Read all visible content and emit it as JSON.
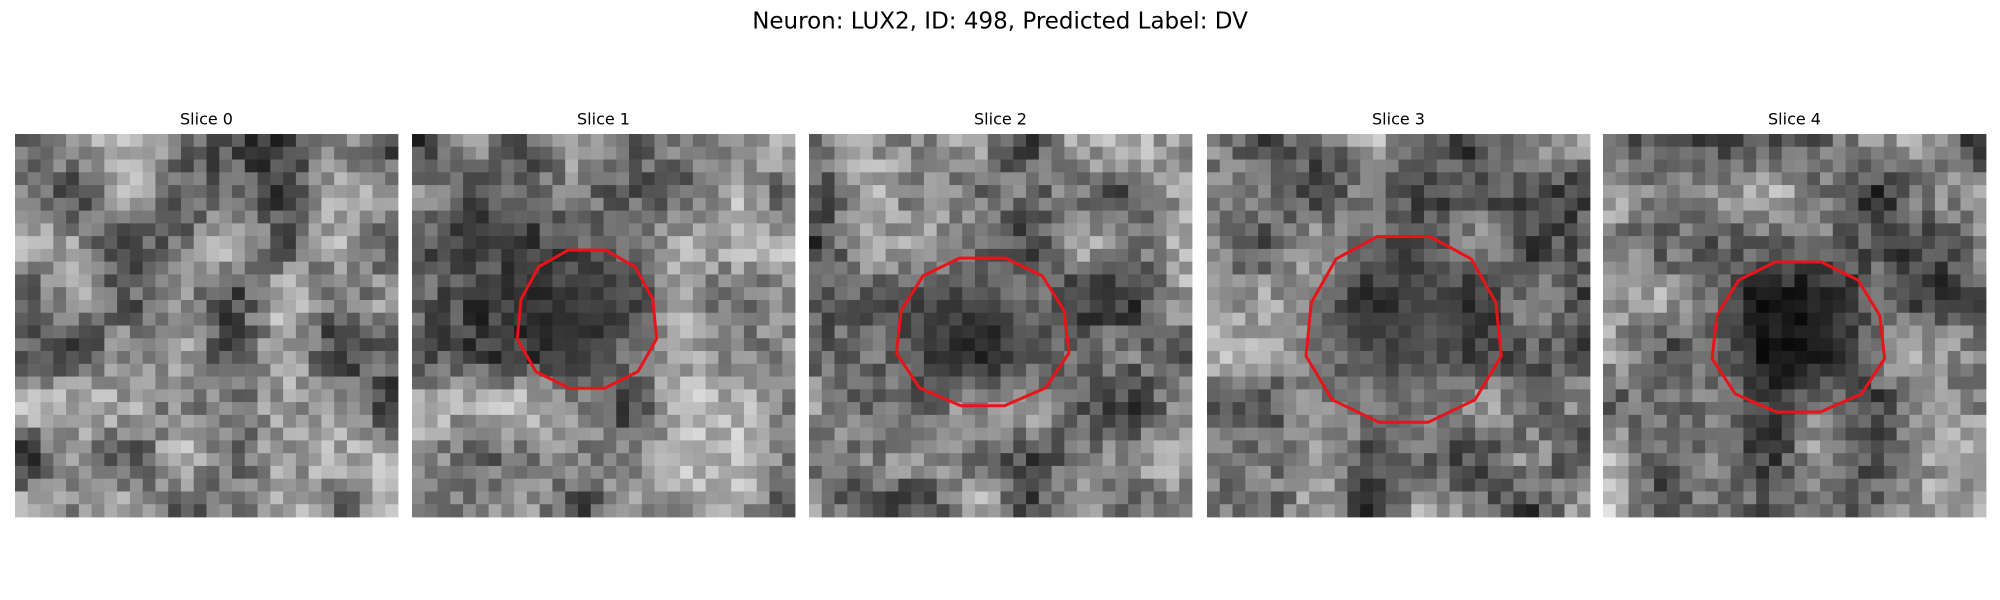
{
  "title": "Neuron: LUX2, ID: 498, Predicted Label: DV",
  "panels": [
    {
      "title": "Slice 0"
    },
    {
      "title": "Slice 1"
    },
    {
      "title": "Slice 2"
    },
    {
      "title": "Slice 3"
    },
    {
      "title": "Slice 4"
    }
  ]
}
